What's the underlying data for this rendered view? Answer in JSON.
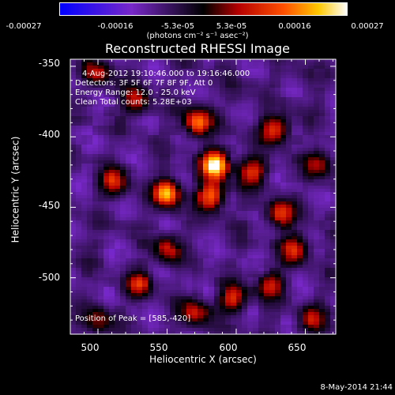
{
  "chart_data": {
    "type": "heatmap",
    "title": "Reconstructed RHESSI Image",
    "xlabel": "Heliocentric X (arcsec)",
    "ylabel": "Heliocentric Y (arcsec)",
    "xlim": [
      480,
      672
    ],
    "ylim": [
      -540,
      -345
    ],
    "x_ticks": [
      "500",
      "550",
      "600",
      "650"
    ],
    "y_ticks": [
      "-350",
      "-400",
      "-450",
      "-500"
    ],
    "colorbar": {
      "range": [
        -0.00027,
        0.00027
      ],
      "tick_labels": [
        "-0.00027",
        "-0.00016",
        "-5.3e-05",
        "5.3e-05",
        "0.00016",
        "0.00027"
      ],
      "unit_label": "(photons cm⁻² s⁻¹ asec⁻²)"
    },
    "peak_position": [
      585,
      -420
    ],
    "sources": [
      {
        "x": 585,
        "y": -420,
        "value": 0.00027
      },
      {
        "x": 550,
        "y": -440,
        "value": 0.00022
      },
      {
        "x": 582,
        "y": -442,
        "value": 0.00018
      },
      {
        "x": 572,
        "y": -390,
        "value": 0.00016
      },
      {
        "x": 628,
        "y": -395,
        "value": 0.00012
      },
      {
        "x": 612,
        "y": -425,
        "value": 0.00011
      },
      {
        "x": 632,
        "y": -455,
        "value": 0.00011
      },
      {
        "x": 642,
        "y": -480,
        "value": 0.0001
      },
      {
        "x": 598,
        "y": -515,
        "value": 0.0001
      },
      {
        "x": 570,
        "y": -525,
        "value": 0.0001
      },
      {
        "x": 530,
        "y": -505,
        "value": 9e-05
      },
      {
        "x": 512,
        "y": -432,
        "value": 9e-05
      },
      {
        "x": 550,
        "y": -480,
        "value": 8e-05
      },
      {
        "x": 527,
        "y": -375,
        "value": 8e-05
      },
      {
        "x": 500,
        "y": -355,
        "value": 7e-05
      },
      {
        "x": 625,
        "y": -505,
        "value": 7e-05
      },
      {
        "x": 660,
        "y": -420,
        "value": 7e-05
      },
      {
        "x": 500,
        "y": -530,
        "value": 5e-05
      },
      {
        "x": 655,
        "y": -530,
        "value": 6e-05
      },
      {
        "x": 495,
        "y": -480,
        "value": -7e-05
      },
      {
        "x": 650,
        "y": -360,
        "value": -6e-05
      },
      {
        "x": 600,
        "y": -370,
        "value": -5e-05
      }
    ]
  },
  "annotations": {
    "time_range": "4-Aug-2012 19:10:46.000 to 19:16:46.000",
    "detectors": "Detectors: 3F 5F 6F 7F 8F 9F, Att 0",
    "energy_range": "Energy Range: 12.0 - 25.0 keV",
    "clean": "Clean     Total counts: 5.28E+03",
    "peak": "Position of Peak = [585,-420]"
  },
  "footer": {
    "date": "8-May-2014 21:44"
  }
}
